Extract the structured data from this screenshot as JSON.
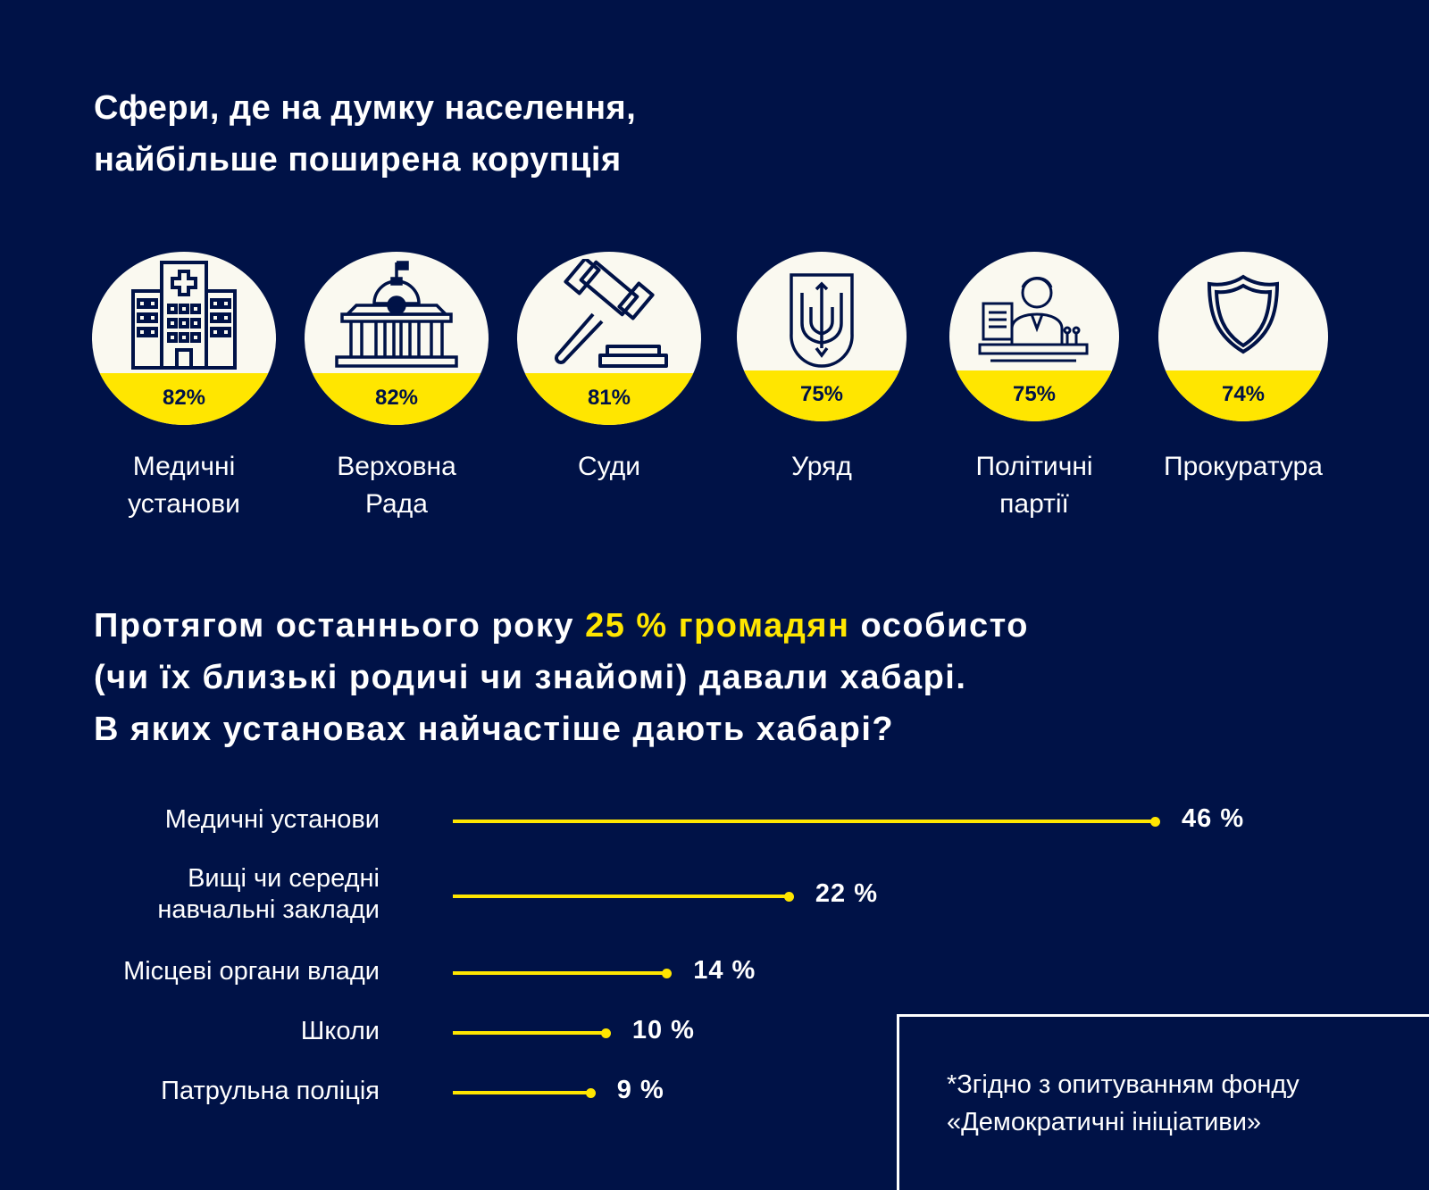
{
  "title_line1": "Сфери, де на думку населення,",
  "title_line2": "найбільше поширена корупція",
  "spheres": [
    {
      "pct": "82%",
      "label1": "Медичні",
      "label2": "установи",
      "icon": "hospital-icon"
    },
    {
      "pct": "82%",
      "label1": "Верховна",
      "label2": "Рада",
      "icon": "parliament-icon"
    },
    {
      "pct": "81%",
      "label1": "Суди",
      "label2": "",
      "icon": "gavel-icon"
    },
    {
      "pct": "75%",
      "label1": "Уряд",
      "label2": "",
      "icon": "trident-icon"
    },
    {
      "pct": "75%",
      "label1": "Політичні",
      "label2": "партії",
      "icon": "politician-icon"
    },
    {
      "pct": "74%",
      "label1": "Прокуратура",
      "label2": "",
      "icon": "shield-icon"
    }
  ],
  "question": {
    "part1": "Протягом останнього року ",
    "highlight": "25 % громадян",
    "part2": " особисто",
    "line2": "(чи їх близькі родичі чи знайомі) давали хабарі.",
    "line3": "В яких установах найчастіше дають хабарі?"
  },
  "chart_data": {
    "type": "bar",
    "categories": [
      "Медичні установи",
      "Вищі чи середні навчальні заклади",
      "Місцеві органи влади",
      "Школи",
      "Патрульна поліція"
    ],
    "values": [
      46,
      22,
      14,
      10,
      9
    ],
    "value_labels": [
      "46 %",
      "22 %",
      "14 %",
      "10 %",
      "9 %"
    ],
    "label_lines": [
      [
        "Медичні установи"
      ],
      [
        "Вищі чи середні",
        "навчальні заклади"
      ],
      [
        "Місцеві органи влади"
      ],
      [
        "Школи"
      ],
      [
        "Патрульна поліція"
      ]
    ],
    "orientation": "horizontal",
    "color": "#FFE600"
  },
  "sphere_chart": {
    "type": "bar",
    "categories": [
      "Медичні установи",
      "Верховна Рада",
      "Суди",
      "Уряд",
      "Політичні партії",
      "Прокуратура"
    ],
    "values": [
      82,
      82,
      81,
      75,
      75,
      74
    ]
  },
  "source_line1": "*Згідно з опитуванням фонду",
  "source_line2": "«Демократичні ініціативи»",
  "colors": {
    "background": "#001247",
    "accent": "#FFE600",
    "circle": "#FAF9F0"
  }
}
